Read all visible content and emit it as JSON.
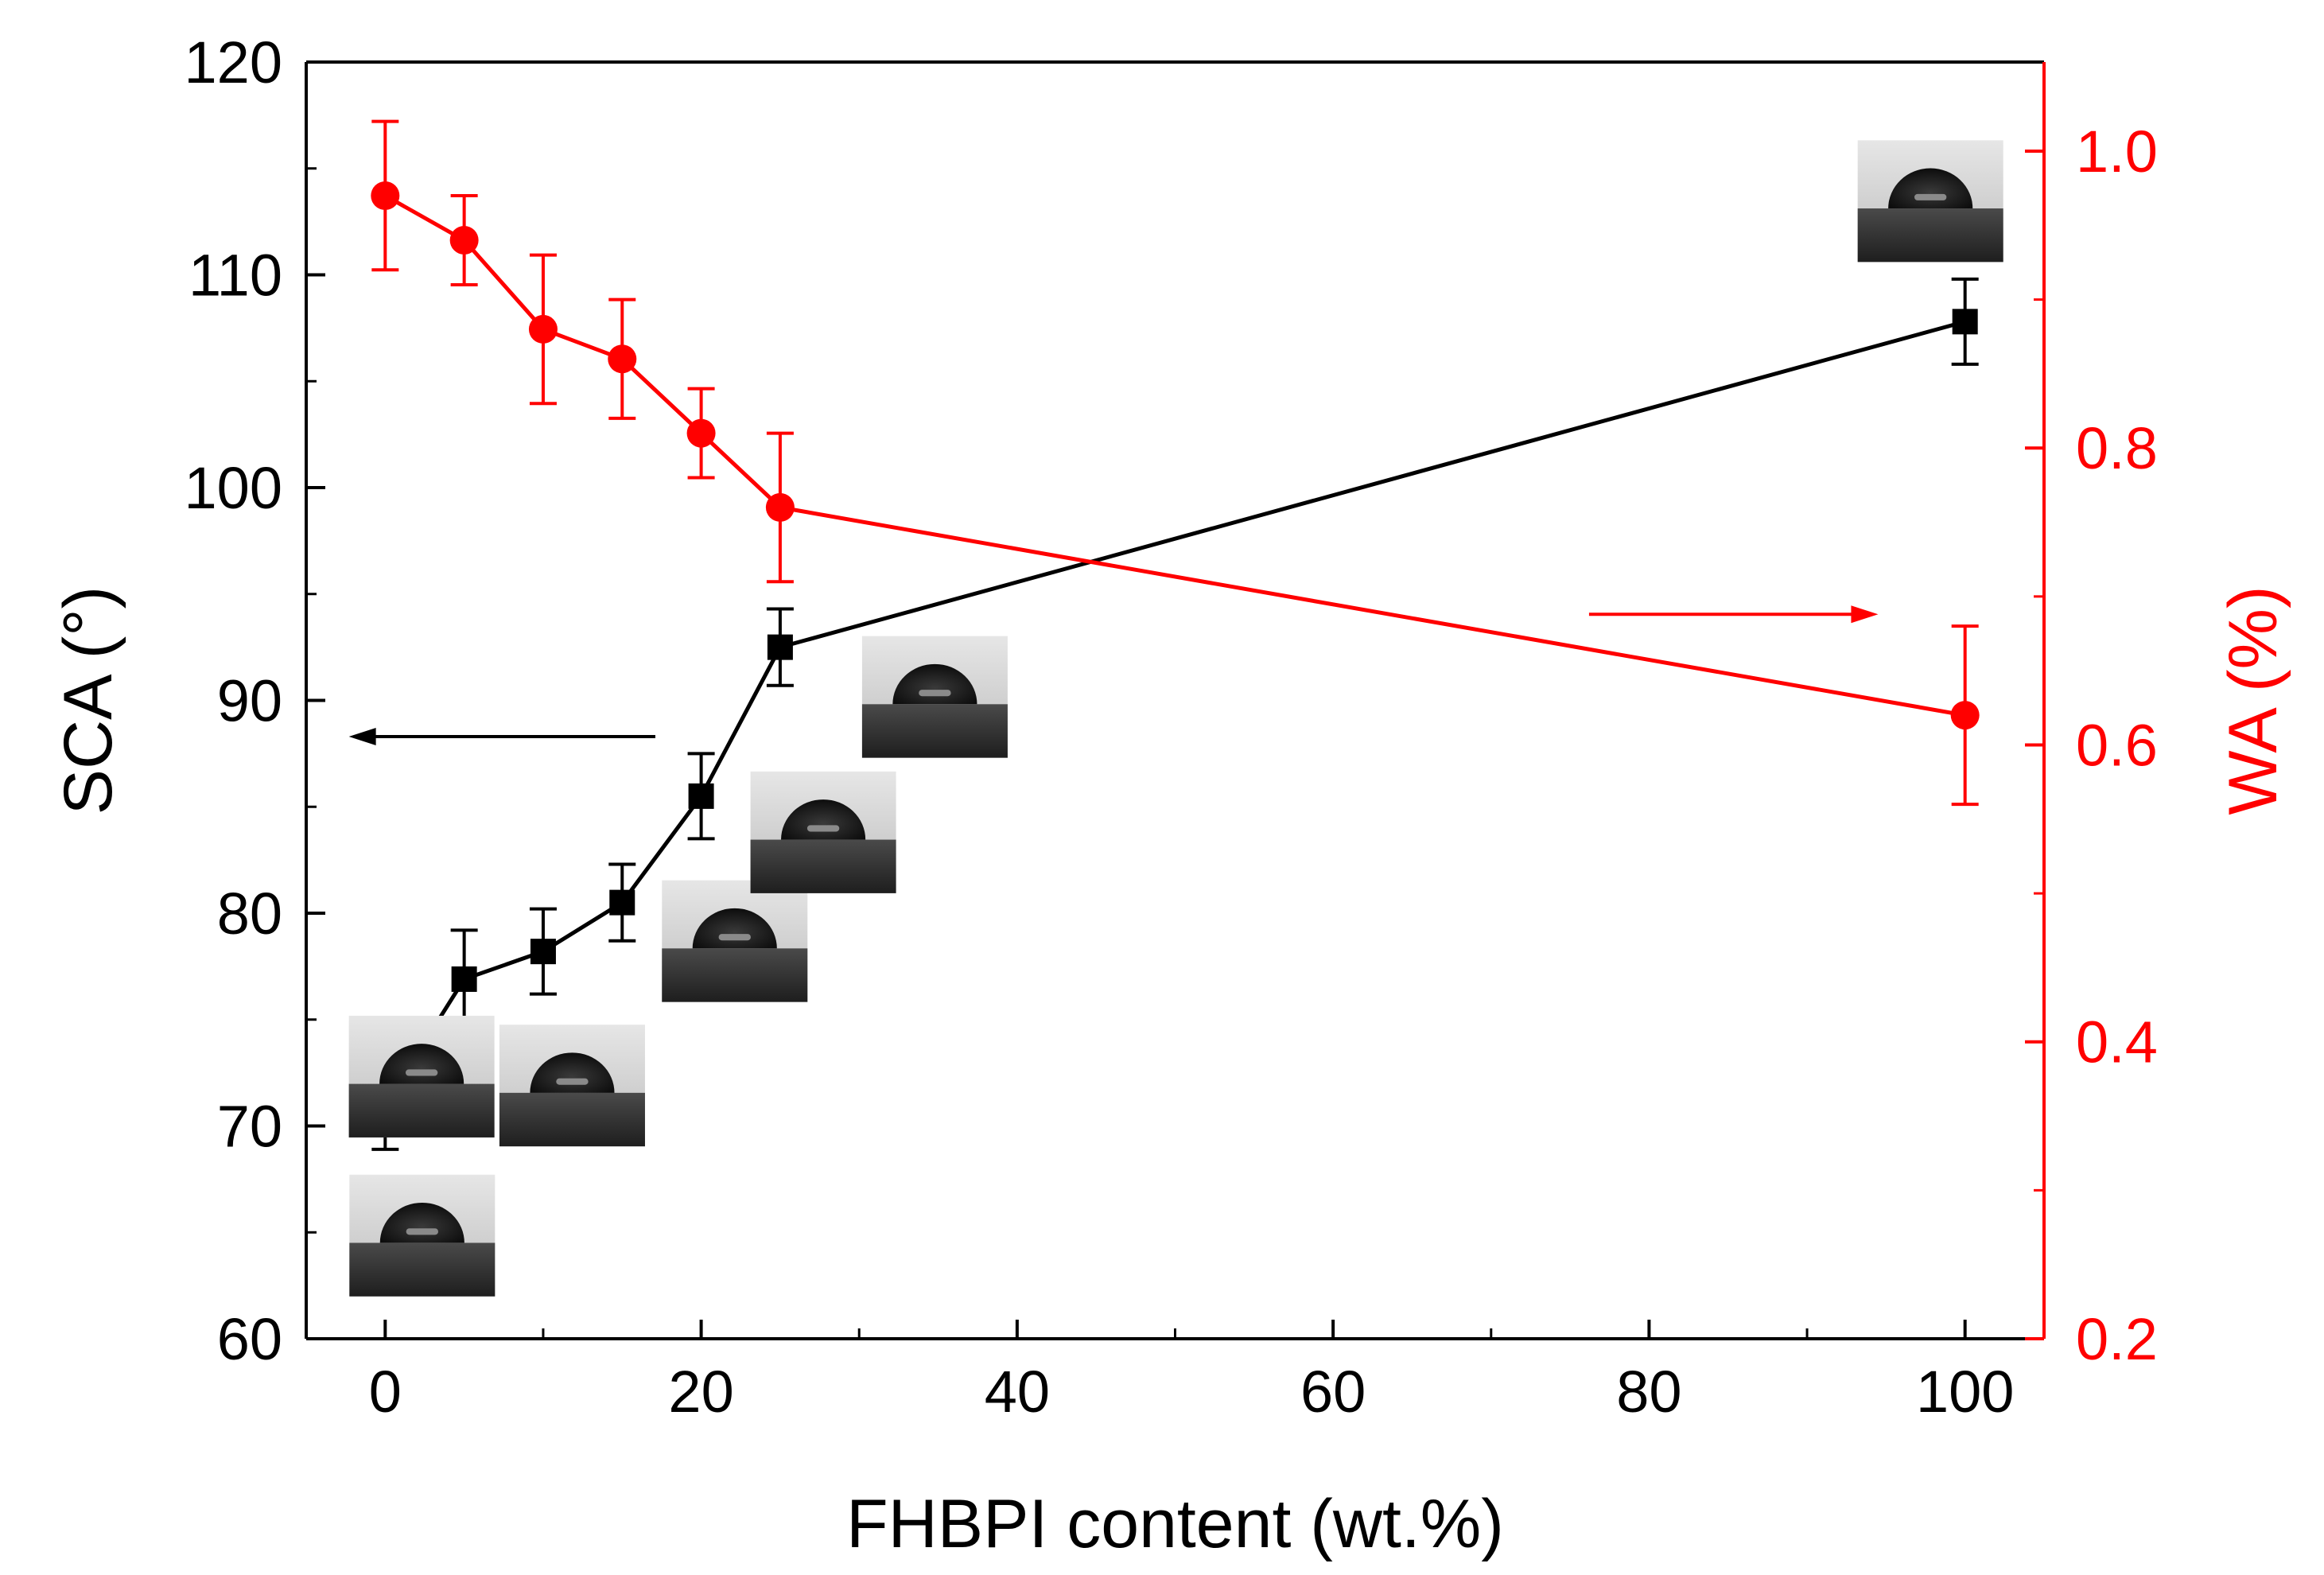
{
  "chart_data": {
    "type": "line",
    "xlabel": "FHBPI content (wt.%)",
    "ylabel_left": "SCA (°)",
    "ylabel_right": "WA (%)",
    "xlim": [
      -5,
      105
    ],
    "xticks": [
      0,
      20,
      40,
      60,
      80,
      100
    ],
    "xtick_labels": [
      "0",
      "20",
      "40",
      "60",
      "80",
      "100"
    ],
    "ylim_left": [
      60,
      120
    ],
    "yticks_left": [
      60,
      70,
      80,
      90,
      100,
      110,
      120
    ],
    "ytick_labels_left": [
      "60",
      "70",
      "80",
      "90",
      "100",
      "110",
      "120"
    ],
    "ylim_right": [
      0.2,
      1.06
    ],
    "yticks_right": [
      0.2,
      0.4,
      0.6,
      0.8,
      1.0
    ],
    "ytick_labels_right": [
      "0.2",
      "0.4",
      "0.6",
      "0.8",
      "1.0"
    ],
    "grid": false,
    "legend": "none",
    "series": [
      {
        "axis": "left",
        "color": "#000000",
        "marker": "square",
        "x": [
          0,
          5,
          10,
          15,
          20,
          25,
          100
        ],
        "y": [
          71.0,
          76.9,
          78.2,
          80.5,
          85.5,
          92.5,
          107.8
        ],
        "yerr": [
          2.1,
          2.3,
          2.0,
          1.8,
          2.0,
          1.8,
          2.0
        ]
      },
      {
        "axis": "right",
        "color": "#ff0000",
        "marker": "circle",
        "x": [
          0,
          5,
          10,
          15,
          20,
          25,
          100
        ],
        "y": [
          0.97,
          0.94,
          0.88,
          0.86,
          0.81,
          0.76,
          0.62
        ],
        "yerr": [
          0.05,
          0.03,
          0.05,
          0.04,
          0.03,
          0.05,
          0.06
        ]
      }
    ],
    "annotations": [
      {
        "type": "arrow",
        "direction": "left",
        "color": "#000000",
        "points_to": "left axis"
      },
      {
        "type": "arrow",
        "direction": "right",
        "color": "#ff0000",
        "points_to": "right axis"
      },
      {
        "type": "droplet-photo",
        "x": 0
      },
      {
        "type": "droplet-photo",
        "x": 5
      },
      {
        "type": "droplet-photo",
        "x": 10
      },
      {
        "type": "droplet-photo",
        "x": 15
      },
      {
        "type": "droplet-photo",
        "x": 20
      },
      {
        "type": "droplet-photo",
        "x": 25
      },
      {
        "type": "droplet-photo",
        "x": 100
      }
    ]
  }
}
